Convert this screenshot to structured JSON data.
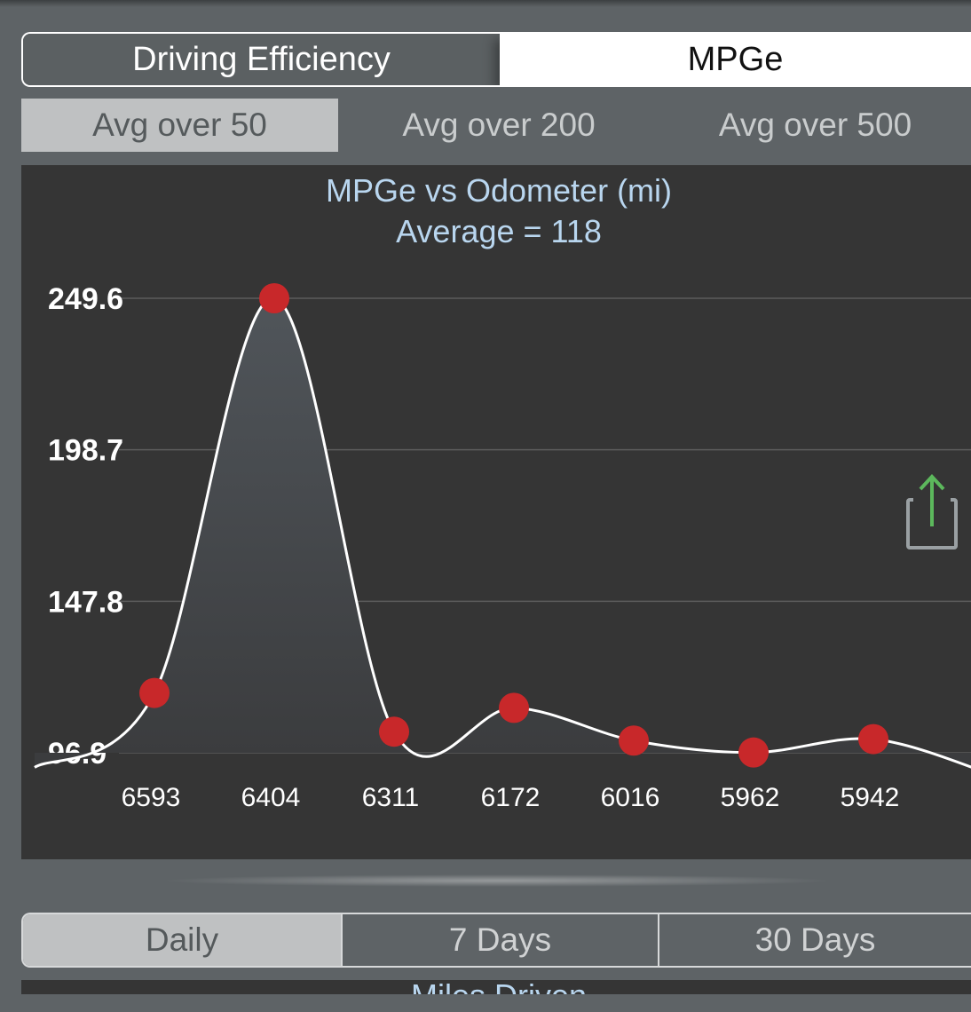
{
  "top_segment": {
    "left_label": "Driving Efficiency",
    "right_label": "MPGe",
    "selected": "MPGe"
  },
  "avg_tabs": [
    {
      "label": "Avg over 50",
      "selected": true
    },
    {
      "label": "Avg over 200",
      "selected": false
    },
    {
      "label": "Avg over 500",
      "selected": false
    }
  ],
  "chart_data": {
    "type": "line",
    "title": "MPGe vs Odometer (mi)",
    "subtitle": "Average = 118",
    "x": [
      "6593",
      "6404",
      "6311",
      "6172",
      "6016",
      "5962",
      "5942"
    ],
    "values": [
      117,
      249.6,
      104,
      112,
      101,
      97,
      101.5
    ],
    "y_ticks": [
      "249.6",
      "198.7",
      "147.8",
      "96.9"
    ],
    "ylim": [
      96.9,
      249.6
    ],
    "grid": true,
    "colors": {
      "line": "#ffffff",
      "marker": "#c8282a",
      "grid": "#5c5c5c",
      "title": "#b9d6ef"
    }
  },
  "share_icon": "share-icon",
  "bottom_segment": [
    {
      "label": "Daily",
      "selected": true
    },
    {
      "label": "7 Days",
      "selected": false
    },
    {
      "label": "30 Days",
      "selected": false
    }
  ],
  "bottom_panel": {
    "title": "Miles Driven"
  }
}
